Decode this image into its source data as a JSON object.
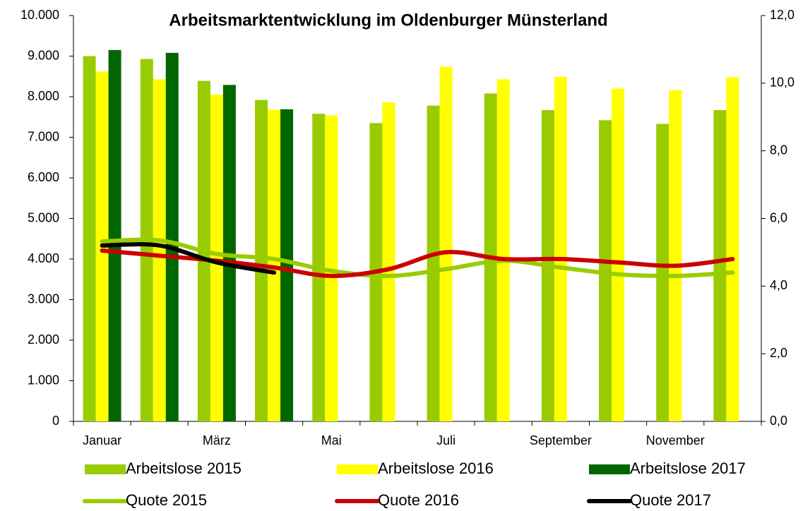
{
  "chart_data": {
    "type": "bar",
    "title": "Arbeitsmarktentwicklung im Oldenburger Münsterland",
    "categories": [
      "Januar",
      null,
      "März",
      null,
      "Mai",
      null,
      "Juli",
      null,
      "September",
      null,
      "November",
      null
    ],
    "series": [
      {
        "name": "Arbeitslose 2015",
        "color": "#99cc00",
        "values": [
          9000,
          8930,
          8390,
          7920,
          7580,
          7350,
          7780,
          8080,
          7670,
          7420,
          7330,
          7670
        ]
      },
      {
        "name": "Arbeitslose 2016",
        "color": "#ffff00",
        "values": [
          8620,
          8430,
          8050,
          7680,
          7540,
          7860,
          8740,
          8430,
          8490,
          8200,
          8160,
          8480
        ]
      },
      {
        "name": "Arbeitslose 2017",
        "color": "#006600",
        "values": [
          9150,
          9080,
          8290,
          7690,
          null,
          null,
          null,
          null,
          null,
          null,
          null,
          null
        ]
      },
      {
        "name": "Quote 2015",
        "color": "#99cc00",
        "axis": "y2",
        "values": [
          5.32,
          5.35,
          4.95,
          4.8,
          4.45,
          4.3,
          4.5,
          4.75,
          4.55,
          4.35,
          4.3,
          4.4
        ]
      },
      {
        "name": "Quote 2016",
        "color": "#cc0000",
        "axis": "y2",
        "values": [
          5.05,
          4.9,
          4.75,
          4.55,
          4.3,
          4.5,
          5.0,
          4.8,
          4.8,
          4.7,
          4.6,
          4.8
        ]
      },
      {
        "name": "Quote 2017",
        "color": "#000000",
        "axis": "y2",
        "values": [
          5.2,
          5.2,
          4.7,
          4.4,
          null,
          null,
          null,
          null,
          null,
          null,
          null,
          null
        ]
      }
    ],
    "ylim": [
      0,
      10000
    ],
    "yticks": [
      0,
      {
        "value": 1000,
        "label": "1.000"
      },
      {
        "value": 2000,
        "label": "2.000"
      },
      {
        "value": 3000,
        "label": "3.000"
      },
      {
        "value": 4000,
        "label": "4.000"
      },
      {
        "value": 5000,
        "label": "5.000"
      },
      {
        "value": 6000,
        "label": "6.000"
      },
      {
        "value": 7000,
        "label": "7.000"
      },
      {
        "value": 8000,
        "label": "8.000"
      },
      {
        "value": 9000,
        "label": "9.000"
      },
      {
        "value": 10000,
        "label": "10.000"
      }
    ],
    "y2lim": [
      0,
      12
    ],
    "y2ticks": [
      {
        "value": 0,
        "label": "0,0"
      },
      {
        "value": 2,
        "label": "2,0"
      },
      {
        "value": 4,
        "label": "4,0"
      },
      {
        "value": 6,
        "label": "6,0"
      },
      {
        "value": 8,
        "label": "8,0"
      },
      {
        "value": 10,
        "label": "10,0"
      },
      {
        "value": 12,
        "label": "12,0"
      }
    ],
    "grid": false
  }
}
